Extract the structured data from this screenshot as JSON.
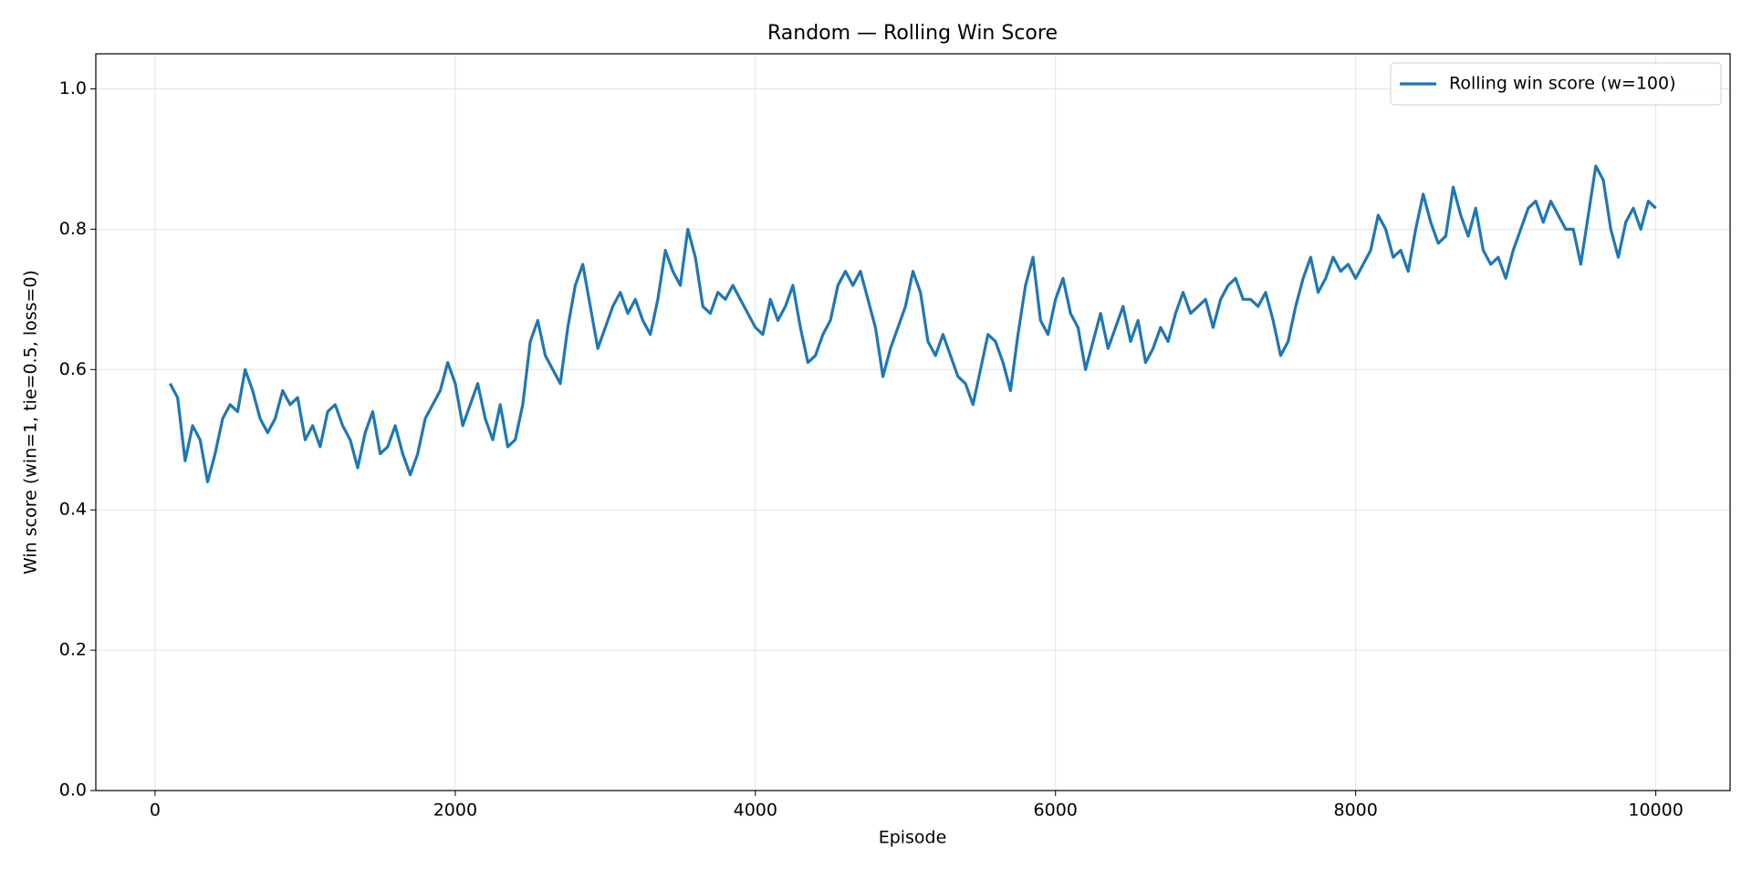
{
  "chart_data": {
    "type": "line",
    "title": "Random — Rolling Win Score",
    "x_label": "Episode",
    "y_label": "Win score (win=1, tie=0.5, loss=0)",
    "xlim": [
      -395,
      10495
    ],
    "ylim": [
      0,
      1.05
    ],
    "xticks": [
      0,
      2000,
      4000,
      6000,
      8000,
      10000
    ],
    "yticks": [
      {
        "value": 0,
        "label": "0.0"
      },
      {
        "value": 0.2,
        "label": "0.2"
      },
      {
        "value": 0.4,
        "label": "0.4"
      },
      {
        "value": 0.6,
        "label": "0.6"
      },
      {
        "value": 0.8,
        "label": "0.8"
      },
      {
        "value": 1,
        "label": "1.0"
      }
    ],
    "grid": true,
    "legend": "upper right",
    "x": [
      100,
      150,
      200,
      250,
      300,
      350,
      400,
      450,
      500,
      550,
      600,
      650,
      700,
      750,
      800,
      850,
      900,
      950,
      1000,
      1050,
      1100,
      1150,
      1200,
      1250,
      1300,
      1350,
      1400,
      1450,
      1500,
      1550,
      1600,
      1650,
      1700,
      1750,
      1800,
      1850,
      1900,
      1950,
      2000,
      2050,
      2100,
      2150,
      2200,
      2250,
      2300,
      2350,
      2400,
      2450,
      2500,
      2550,
      2600,
      2650,
      2700,
      2750,
      2800,
      2850,
      2900,
      2950,
      3000,
      3050,
      3100,
      3150,
      3200,
      3250,
      3300,
      3350,
      3400,
      3450,
      3500,
      3550,
      3600,
      3650,
      3700,
      3750,
      3800,
      3850,
      3900,
      3950,
      4000,
      4050,
      4100,
      4150,
      4200,
      4250,
      4300,
      4350,
      4400,
      4450,
      4500,
      4550,
      4600,
      4650,
      4700,
      4750,
      4800,
      4850,
      4900,
      4950,
      5000,
      5050,
      5100,
      5150,
      5200,
      5250,
      5300,
      5350,
      5400,
      5450,
      5500,
      5550,
      5600,
      5650,
      5700,
      5750,
      5800,
      5850,
      5900,
      5950,
      6000,
      6050,
      6100,
      6150,
      6200,
      6250,
      6300,
      6350,
      6400,
      6450,
      6500,
      6550,
      6600,
      6650,
      6700,
      6750,
      6800,
      6850,
      6900,
      6950,
      7000,
      7050,
      7100,
      7150,
      7200,
      7250,
      7300,
      7350,
      7400,
      7450,
      7500,
      7550,
      7600,
      7650,
      7700,
      7750,
      7800,
      7850,
      7900,
      7950,
      8000,
      8050,
      8100,
      8150,
      8200,
      8250,
      8300,
      8350,
      8400,
      8450,
      8500,
      8550,
      8600,
      8650,
      8700,
      8750,
      8800,
      8850,
      8900,
      8950,
      9000,
      9050,
      9100,
      9150,
      9200,
      9250,
      9300,
      9350,
      9400,
      9450,
      9500,
      9550,
      9600,
      9650,
      9700,
      9750,
      9800,
      9850,
      9900,
      9950,
      10000
    ],
    "series": [
      {
        "name": "Rolling win score (w=100)",
        "color": "#1f77b4",
        "values": [
          0.58,
          0.56,
          0.47,
          0.52,
          0.5,
          0.44,
          0.48,
          0.53,
          0.55,
          0.54,
          0.6,
          0.57,
          0.53,
          0.51,
          0.53,
          0.57,
          0.55,
          0.56,
          0.5,
          0.52,
          0.49,
          0.54,
          0.55,
          0.52,
          0.5,
          0.46,
          0.51,
          0.54,
          0.48,
          0.49,
          0.52,
          0.48,
          0.45,
          0.48,
          0.53,
          0.55,
          0.57,
          0.61,
          0.58,
          0.52,
          0.55,
          0.58,
          0.53,
          0.5,
          0.55,
          0.49,
          0.5,
          0.55,
          0.64,
          0.67,
          0.62,
          0.6,
          0.58,
          0.66,
          0.72,
          0.75,
          0.69,
          0.63,
          0.66,
          0.69,
          0.71,
          0.68,
          0.7,
          0.67,
          0.65,
          0.7,
          0.77,
          0.74,
          0.72,
          0.8,
          0.76,
          0.69,
          0.68,
          0.71,
          0.7,
          0.72,
          0.7,
          0.68,
          0.66,
          0.65,
          0.7,
          0.67,
          0.69,
          0.72,
          0.66,
          0.61,
          0.62,
          0.65,
          0.67,
          0.72,
          0.74,
          0.72,
          0.74,
          0.7,
          0.66,
          0.59,
          0.63,
          0.66,
          0.69,
          0.74,
          0.71,
          0.64,
          0.62,
          0.65,
          0.62,
          0.59,
          0.58,
          0.55,
          0.6,
          0.65,
          0.64,
          0.61,
          0.57,
          0.65,
          0.72,
          0.76,
          0.67,
          0.65,
          0.7,
          0.73,
          0.68,
          0.66,
          0.6,
          0.64,
          0.68,
          0.63,
          0.66,
          0.69,
          0.64,
          0.67,
          0.61,
          0.63,
          0.66,
          0.64,
          0.68,
          0.71,
          0.68,
          0.69,
          0.7,
          0.66,
          0.7,
          0.72,
          0.73,
          0.7,
          0.7,
          0.69,
          0.71,
          0.67,
          0.62,
          0.64,
          0.69,
          0.73,
          0.76,
          0.71,
          0.73,
          0.76,
          0.74,
          0.75,
          0.73,
          0.75,
          0.77,
          0.82,
          0.8,
          0.76,
          0.77,
          0.74,
          0.8,
          0.85,
          0.81,
          0.78,
          0.79,
          0.86,
          0.82,
          0.79,
          0.83,
          0.77,
          0.75,
          0.76,
          0.73,
          0.77,
          0.8,
          0.83,
          0.84,
          0.81,
          0.84,
          0.82,
          0.8,
          0.8,
          0.75,
          0.82,
          0.89,
          0.87,
          0.8,
          0.76,
          0.81,
          0.83,
          0.8,
          0.84,
          0.83
        ]
      }
    ]
  }
}
